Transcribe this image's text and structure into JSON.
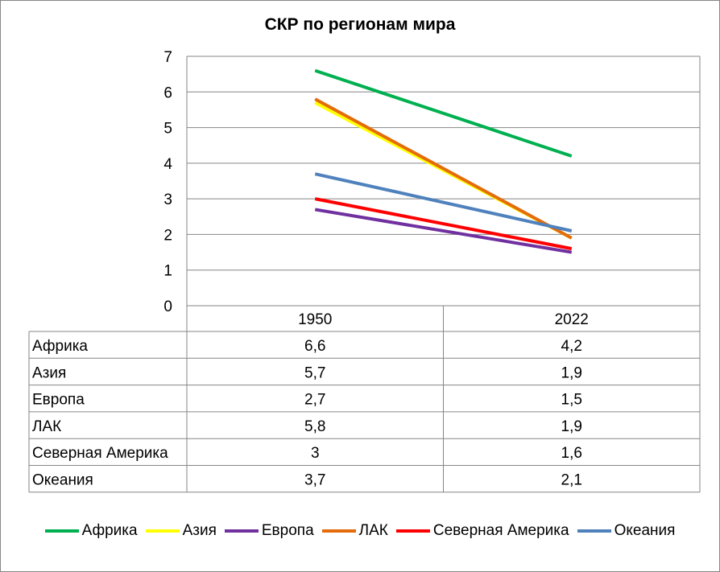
{
  "chart_data": {
    "type": "line",
    "title": "СКР по регионам мира",
    "categories": [
      "1950",
      "2022"
    ],
    "ylim": [
      0,
      7
    ],
    "yticks": [
      "0",
      "1",
      "2",
      "3",
      "4",
      "5",
      "6",
      "7"
    ],
    "grid": true,
    "legend_position": "bottom",
    "data_table": true,
    "series": [
      {
        "name": "Африка",
        "values": [
          6.6,
          4.2
        ],
        "labels": [
          "6,6",
          "4,2"
        ],
        "color": "#00B050"
      },
      {
        "name": "Азия",
        "values": [
          5.7,
          1.9
        ],
        "labels": [
          "5,7",
          "1,9"
        ],
        "color": "#FFFF00"
      },
      {
        "name": "Европа",
        "values": [
          2.7,
          1.5
        ],
        "labels": [
          "2,7",
          "1,5"
        ],
        "color": "#7030A0"
      },
      {
        "name": "ЛАК",
        "values": [
          5.8,
          1.9
        ],
        "labels": [
          "5,8",
          "1,9"
        ],
        "color": "#E46C0A"
      },
      {
        "name": "Северная Америка",
        "values": [
          3,
          1.6
        ],
        "labels": [
          "3",
          "1,6"
        ],
        "color": "#FF0000"
      },
      {
        "name": "Океания",
        "values": [
          3.7,
          2.1
        ],
        "labels": [
          "3,7",
          "2,1"
        ],
        "color": "#4F81BD"
      }
    ]
  }
}
